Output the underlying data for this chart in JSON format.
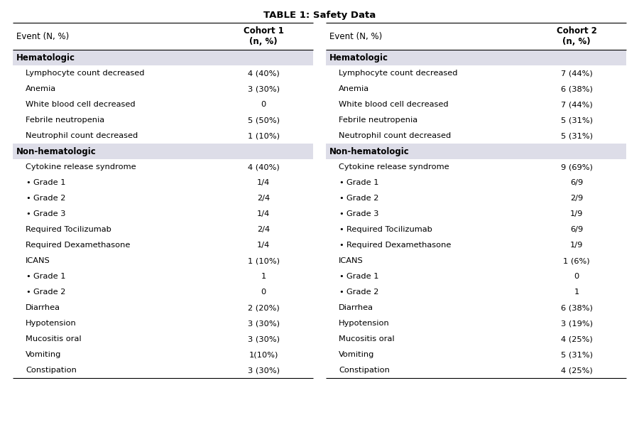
{
  "title": "TABLE 1: Safety Data",
  "title_fontsize": 9.5,
  "table_bg": "#ffffff",
  "section_bg": "#dddde8",
  "rows_c1": [
    {
      "label": "Hematologic",
      "val": "",
      "type": "section",
      "indent": 0
    },
    {
      "label": "Lymphocyte count decreased",
      "val": "4 (40%)",
      "type": "data",
      "indent": 1
    },
    {
      "label": "Anemia",
      "val": "3 (30%)",
      "type": "data",
      "indent": 1
    },
    {
      "label": "White blood cell decreased",
      "val": "0",
      "type": "data",
      "indent": 1
    },
    {
      "label": "Febrile neutropenia",
      "val": "5 (50%)",
      "type": "data",
      "indent": 1
    },
    {
      "label": "Neutrophil count decreased",
      "val": "1 (10%)",
      "type": "data",
      "indent": 1
    },
    {
      "label": "Non-hematologic",
      "val": "",
      "type": "section",
      "indent": 0
    },
    {
      "label": "Cytokine release syndrome",
      "val": "4 (40%)",
      "type": "data",
      "indent": 1
    },
    {
      "label": "Grade 1",
      "val": "1/4",
      "type": "bullet",
      "indent": 2
    },
    {
      "label": "Grade 2",
      "val": "2/4",
      "type": "bullet",
      "indent": 2
    },
    {
      "label": "Grade 3",
      "val": "1/4",
      "type": "bullet",
      "indent": 2
    },
    {
      "label": "Required Tocilizumab",
      "val": "2/4",
      "type": "data",
      "indent": 1
    },
    {
      "label": "Required Dexamethasone",
      "val": "1/4",
      "type": "data",
      "indent": 1
    },
    {
      "label": "ICANS",
      "val": "1 (10%)",
      "type": "data",
      "indent": 1
    },
    {
      "label": "Grade 1",
      "val": "1",
      "type": "bullet",
      "indent": 2
    },
    {
      "label": "Grade 2",
      "val": "0",
      "type": "bullet",
      "indent": 2
    },
    {
      "label": "Diarrhea",
      "val": "2 (20%)",
      "type": "data",
      "indent": 1
    },
    {
      "label": "Hypotension",
      "val": "3 (30%)",
      "type": "data",
      "indent": 1
    },
    {
      "label": "Mucositis oral",
      "val": "3 (30%)",
      "type": "data",
      "indent": 1
    },
    {
      "label": "Vomiting",
      "val": "1(10%)",
      "type": "data",
      "indent": 1
    },
    {
      "label": "Constipation",
      "val": "3 (30%)",
      "type": "data",
      "indent": 1
    }
  ],
  "rows_c2": [
    {
      "label": "Hematologic",
      "val": "",
      "type": "section",
      "indent": 0
    },
    {
      "label": "Lymphocyte count decreased",
      "val": "7 (44%)",
      "type": "data",
      "indent": 1
    },
    {
      "label": "Anemia",
      "val": "6 (38%)",
      "type": "data",
      "indent": 1
    },
    {
      "label": "White blood cell decreased",
      "val": "7 (44%)",
      "type": "data",
      "indent": 1
    },
    {
      "label": "Febrile neutropenia",
      "val": "5 (31%)",
      "type": "data",
      "indent": 1
    },
    {
      "label": "Neutrophil count decreased",
      "val": "5 (31%)",
      "type": "data",
      "indent": 1
    },
    {
      "label": "Non-hematologic",
      "val": "",
      "type": "section",
      "indent": 0
    },
    {
      "label": "Cytokine release syndrome",
      "val": "9 (69%)",
      "type": "data",
      "indent": 1
    },
    {
      "label": "Grade 1",
      "val": "6/9",
      "type": "bullet",
      "indent": 2
    },
    {
      "label": "Grade 2",
      "val": "2/9",
      "type": "bullet",
      "indent": 2
    },
    {
      "label": "Grade 3",
      "val": "1/9",
      "type": "bullet",
      "indent": 2
    },
    {
      "label": "Required Tocilizumab",
      "val": "6/9",
      "type": "bullet",
      "indent": 2
    },
    {
      "label": "Required Dexamethasone",
      "val": "1/9",
      "type": "bullet",
      "indent": 2
    },
    {
      "label": "ICANS",
      "val": "1 (6%)",
      "type": "data",
      "indent": 1
    },
    {
      "label": "Grade 1",
      "val": "0",
      "type": "bullet",
      "indent": 2
    },
    {
      "label": "Grade 2",
      "val": "1",
      "type": "bullet",
      "indent": 2
    },
    {
      "label": "Diarrhea",
      "val": "6 (38%)",
      "type": "data",
      "indent": 1
    },
    {
      "label": "Hypotension",
      "val": "3 (19%)",
      "type": "data",
      "indent": 1
    },
    {
      "label": "Mucositis oral",
      "val": "4 (25%)",
      "type": "data",
      "indent": 1
    },
    {
      "label": "Vomiting",
      "val": "5 (31%)",
      "type": "data",
      "indent": 1
    },
    {
      "label": "Constipation",
      "val": "4 (25%)",
      "type": "data",
      "indent": 1
    }
  ],
  "font_size": 8.2,
  "section_font_size": 8.5,
  "header_font_size": 8.5
}
